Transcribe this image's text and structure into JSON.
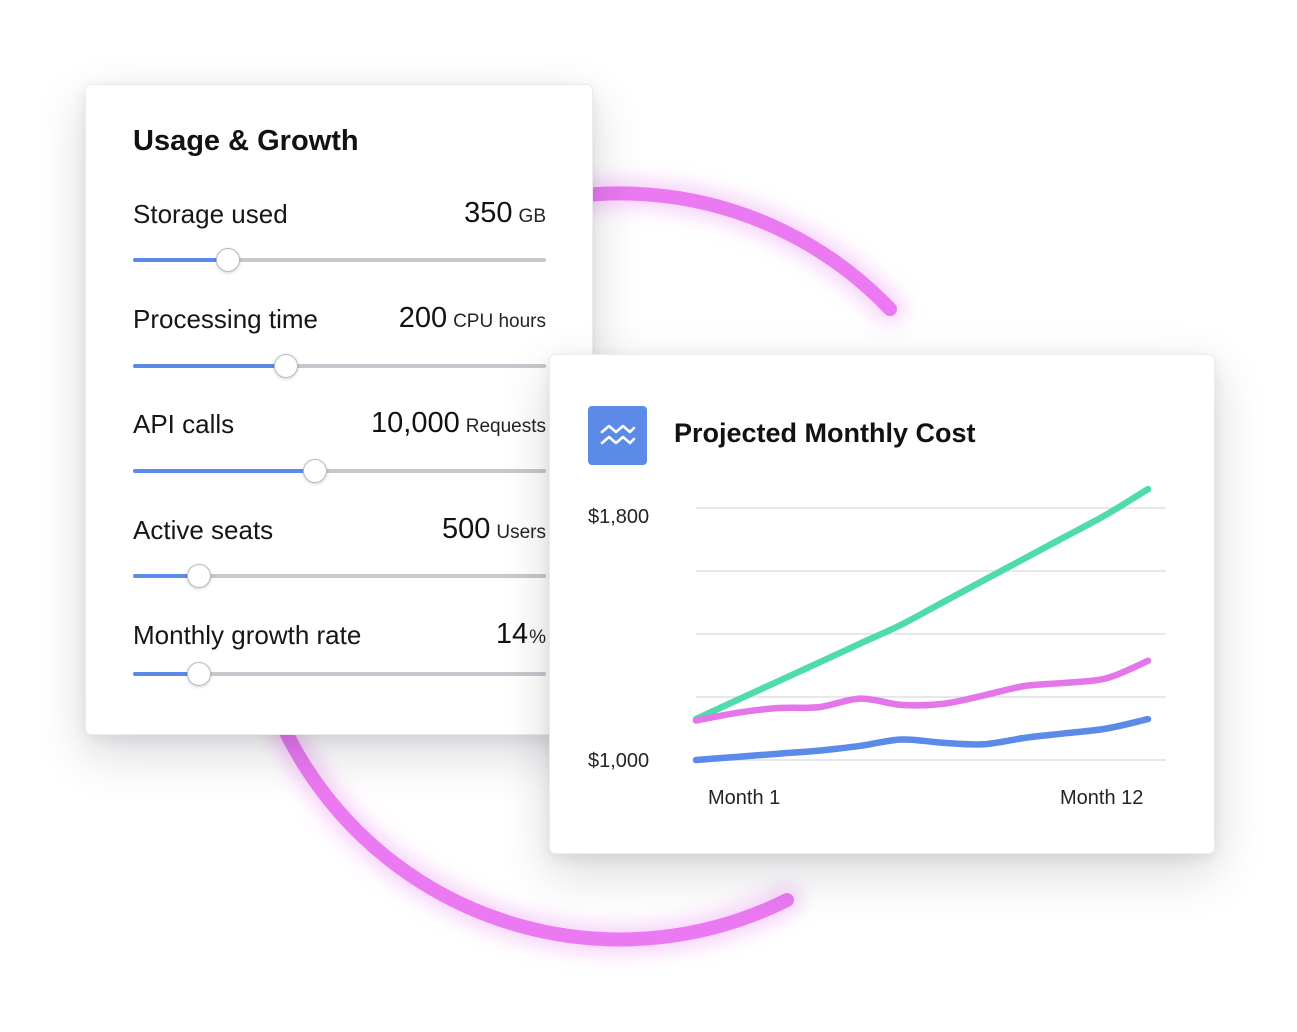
{
  "colors": {
    "arc": "#ea79f2",
    "slider_fill": "#5b8ae8",
    "series_teal": "#4fdbaa",
    "series_pink": "#e476ea",
    "series_blue": "#5b8ae8"
  },
  "usage": {
    "title": "Usage & Growth",
    "sliders": [
      {
        "label": "Storage used",
        "value": "350",
        "unit": "GB",
        "fraction": 0.23
      },
      {
        "label": "Processing time",
        "value": "200",
        "unit": "CPU hours",
        "fraction": 0.37
      },
      {
        "label": "API calls",
        "value": "10,000",
        "unit": "Requests",
        "fraction": 0.44
      },
      {
        "label": "Active seats",
        "value": "500",
        "unit": "Users",
        "fraction": 0.16
      },
      {
        "label": "Monthly growth rate",
        "value": "14",
        "unit": "%",
        "fraction": 0.16
      }
    ]
  },
  "cost": {
    "title": "Projected Monthly Cost",
    "icon": "trend-chart-icon"
  },
  "chart_data": {
    "type": "line",
    "title": "Projected Monthly Cost",
    "x": [
      1,
      2,
      3,
      4,
      5,
      6,
      7,
      8,
      9,
      10,
      11,
      12
    ],
    "x_tick_labels": [
      "Month 1",
      "Month 12"
    ],
    "y_tick_labels": [
      "$1,800",
      "$1,000"
    ],
    "ylim": [
      1000,
      1800
    ],
    "grid": true,
    "series": [
      {
        "color": "#4fdbaa",
        "values": [
          1130,
          1190,
          1250,
          1310,
          1370,
          1430,
          1500,
          1570,
          1640,
          1710,
          1780,
          1860
        ]
      },
      {
        "color": "#e476ea",
        "values": [
          1125,
          1150,
          1165,
          1168,
          1195,
          1175,
          1178,
          1205,
          1235,
          1245,
          1260,
          1315
        ]
      },
      {
        "color": "#5b8ae8",
        "values": [
          1000,
          1010,
          1020,
          1030,
          1045,
          1065,
          1055,
          1050,
          1070,
          1085,
          1100,
          1130
        ]
      }
    ]
  }
}
